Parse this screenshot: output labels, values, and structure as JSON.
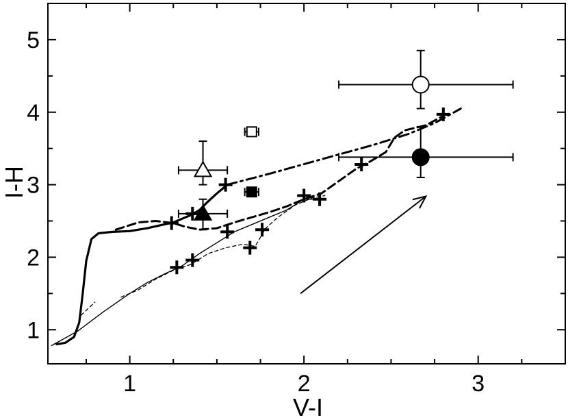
{
  "chart_data": {
    "type": "scatter",
    "title": "",
    "xlabel": "V-I",
    "ylabel": "I-H",
    "xlim": [
      0.53,
      3.5
    ],
    "ylim": [
      0.53,
      5.5
    ],
    "xticks": [
      1,
      2,
      3
    ],
    "yticks": [
      1,
      2,
      3,
      4,
      5
    ],
    "grid": false,
    "legend": "none",
    "colors": {
      "ink": "#000000",
      "background": "#ffffff"
    },
    "tracks": [
      {
        "style": "solid-thick",
        "points": [
          [
            0.58,
            0.8
          ],
          [
            0.63,
            0.82
          ],
          [
            0.68,
            0.9
          ],
          [
            0.71,
            1.1
          ],
          [
            0.73,
            1.5
          ],
          [
            0.75,
            1.95
          ],
          [
            0.78,
            2.25
          ],
          [
            0.82,
            2.33
          ],
          [
            0.9,
            2.35
          ],
          [
            1.0,
            2.36
          ],
          [
            1.1,
            2.4
          ],
          [
            1.25,
            2.48
          ],
          [
            1.35,
            2.58
          ],
          [
            1.4,
            2.65
          ],
          [
            1.45,
            2.77
          ],
          [
            1.5,
            2.88
          ],
          [
            1.56,
            3.0
          ]
        ]
      },
      {
        "style": "dashdot-thick",
        "points": [
          [
            1.56,
            3.0
          ],
          [
            1.8,
            3.15
          ],
          [
            2.1,
            3.35
          ],
          [
            2.4,
            3.55
          ],
          [
            2.6,
            3.7
          ],
          [
            2.75,
            3.85
          ],
          [
            2.9,
            4.05
          ]
        ]
      },
      {
        "style": "dashed-thick",
        "points": [
          [
            0.92,
            2.38
          ],
          [
            1.05,
            2.48
          ],
          [
            1.15,
            2.5
          ],
          [
            1.25,
            2.47
          ],
          [
            1.32,
            2.42
          ],
          [
            1.4,
            2.38
          ],
          [
            1.5,
            2.4
          ],
          [
            1.6,
            2.48
          ],
          [
            1.7,
            2.55
          ],
          [
            1.8,
            2.62
          ],
          [
            1.9,
            2.7
          ],
          [
            2.0,
            2.8
          ],
          [
            2.1,
            2.88
          ],
          [
            2.2,
            3.05
          ],
          [
            2.3,
            3.22
          ],
          [
            2.38,
            3.32
          ],
          [
            2.47,
            3.45
          ],
          [
            2.52,
            3.65
          ],
          [
            2.58,
            3.75
          ],
          [
            2.7,
            3.82
          ],
          [
            2.8,
            3.95
          ]
        ]
      },
      {
        "style": "solid-thin",
        "points": [
          [
            0.55,
            0.78
          ],
          [
            0.7,
            0.98
          ],
          [
            0.85,
            1.25
          ],
          [
            1.0,
            1.5
          ],
          [
            1.1,
            1.65
          ],
          [
            1.2,
            1.77
          ],
          [
            1.3,
            1.88
          ],
          [
            1.4,
            2.05
          ],
          [
            1.5,
            2.2
          ],
          [
            1.6,
            2.35
          ],
          [
            1.7,
            2.45
          ],
          [
            1.8,
            2.55
          ],
          [
            1.9,
            2.65
          ],
          [
            2.0,
            2.8
          ],
          [
            2.05,
            2.8
          ]
        ]
      },
      {
        "style": "dashed-thin",
        "points": [
          [
            0.95,
            1.45
          ],
          [
            1.05,
            1.55
          ],
          [
            1.15,
            1.7
          ],
          [
            1.25,
            1.82
          ],
          [
            1.35,
            1.9
          ],
          [
            1.45,
            2.05
          ],
          [
            1.55,
            2.13
          ],
          [
            1.65,
            2.18
          ],
          [
            1.72,
            2.15
          ],
          [
            1.78,
            2.4
          ],
          [
            1.85,
            2.55
          ],
          [
            1.95,
            2.72
          ],
          [
            2.05,
            2.82
          ],
          [
            2.12,
            2.85
          ]
        ]
      },
      {
        "style": "dashed-thin",
        "points": [
          [
            0.72,
            1.2
          ],
          [
            0.8,
            1.38
          ]
        ]
      }
    ],
    "crosses": [
      [
        1.24,
        2.47
      ],
      [
        1.36,
        2.6
      ],
      [
        1.55,
        3.0
      ],
      [
        1.27,
        1.86
      ],
      [
        1.36,
        1.96
      ],
      [
        1.56,
        2.35
      ],
      [
        1.69,
        2.13
      ],
      [
        1.76,
        2.38
      ],
      [
        2.0,
        2.85
      ],
      [
        2.09,
        2.8
      ],
      [
        2.33,
        3.28
      ],
      [
        2.8,
        3.97
      ]
    ],
    "points": [
      {
        "marker": "circle",
        "fill": "open",
        "x": 2.67,
        "y": 4.38,
        "xerr": [
          0.47,
          0.53
        ],
        "yerr": [
          0.33,
          0.47
        ]
      },
      {
        "marker": "circle",
        "fill": "filled",
        "x": 2.67,
        "y": 3.38,
        "xerr": [
          0.47,
          0.53
        ],
        "yerr": [
          0.28,
          0.42
        ]
      },
      {
        "marker": "triangle",
        "fill": "open",
        "x": 1.42,
        "y": 3.2,
        "xerr": [
          0.14,
          0.14
        ],
        "yerr": [
          0.2,
          0.4
        ]
      },
      {
        "marker": "triangle",
        "fill": "filled",
        "x": 1.42,
        "y": 2.6,
        "xerr": [
          0.14,
          0.14
        ],
        "yerr": [
          0.22,
          0.2
        ]
      },
      {
        "marker": "square",
        "fill": "open",
        "x": 1.7,
        "y": 3.73,
        "xerr": [
          0.04,
          0.04
        ],
        "yerr": [
          0.0,
          0.0
        ]
      },
      {
        "marker": "square",
        "fill": "filled",
        "x": 1.7,
        "y": 2.9,
        "xerr": [
          0.04,
          0.04
        ],
        "yerr": [
          0.0,
          0.0
        ]
      }
    ],
    "arrow": {
      "from": [
        1.98,
        1.5
      ],
      "to": [
        2.7,
        2.84
      ]
    }
  }
}
